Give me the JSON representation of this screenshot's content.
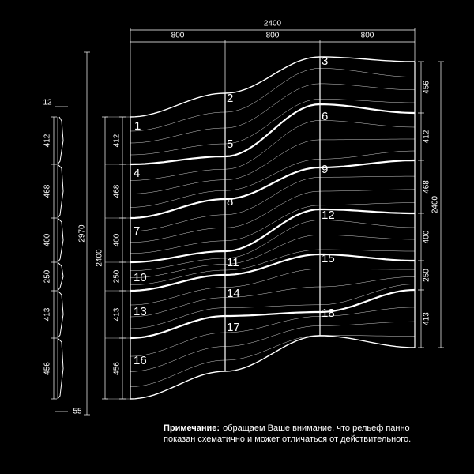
{
  "dims": {
    "top_total": "2400",
    "top_parts": [
      "800",
      "800",
      "800"
    ],
    "outer_left": "2970",
    "inner_left": "2400",
    "right_total": "2400",
    "profile_thickness": "12",
    "profile_depth": "55",
    "profile_heights": [
      "412",
      "468",
      "400",
      "250",
      "413",
      "456"
    ],
    "left_heights": [
      "412",
      "468",
      "400",
      "250",
      "413",
      "456"
    ],
    "right_heights": [
      "456",
      "412",
      "468",
      "400",
      "250",
      "413"
    ]
  },
  "panels": [
    "1",
    "2",
    "3",
    "4",
    "5",
    "6",
    "7",
    "8",
    "9",
    "10",
    "11",
    "12",
    "13",
    "14",
    "15",
    "16",
    "17",
    "18"
  ],
  "note": {
    "label": "Примечание:",
    "line1": "обращаем Ваше внимание, что рельеф панно",
    "line2": "показан схематично и может отличаться от действительного."
  }
}
